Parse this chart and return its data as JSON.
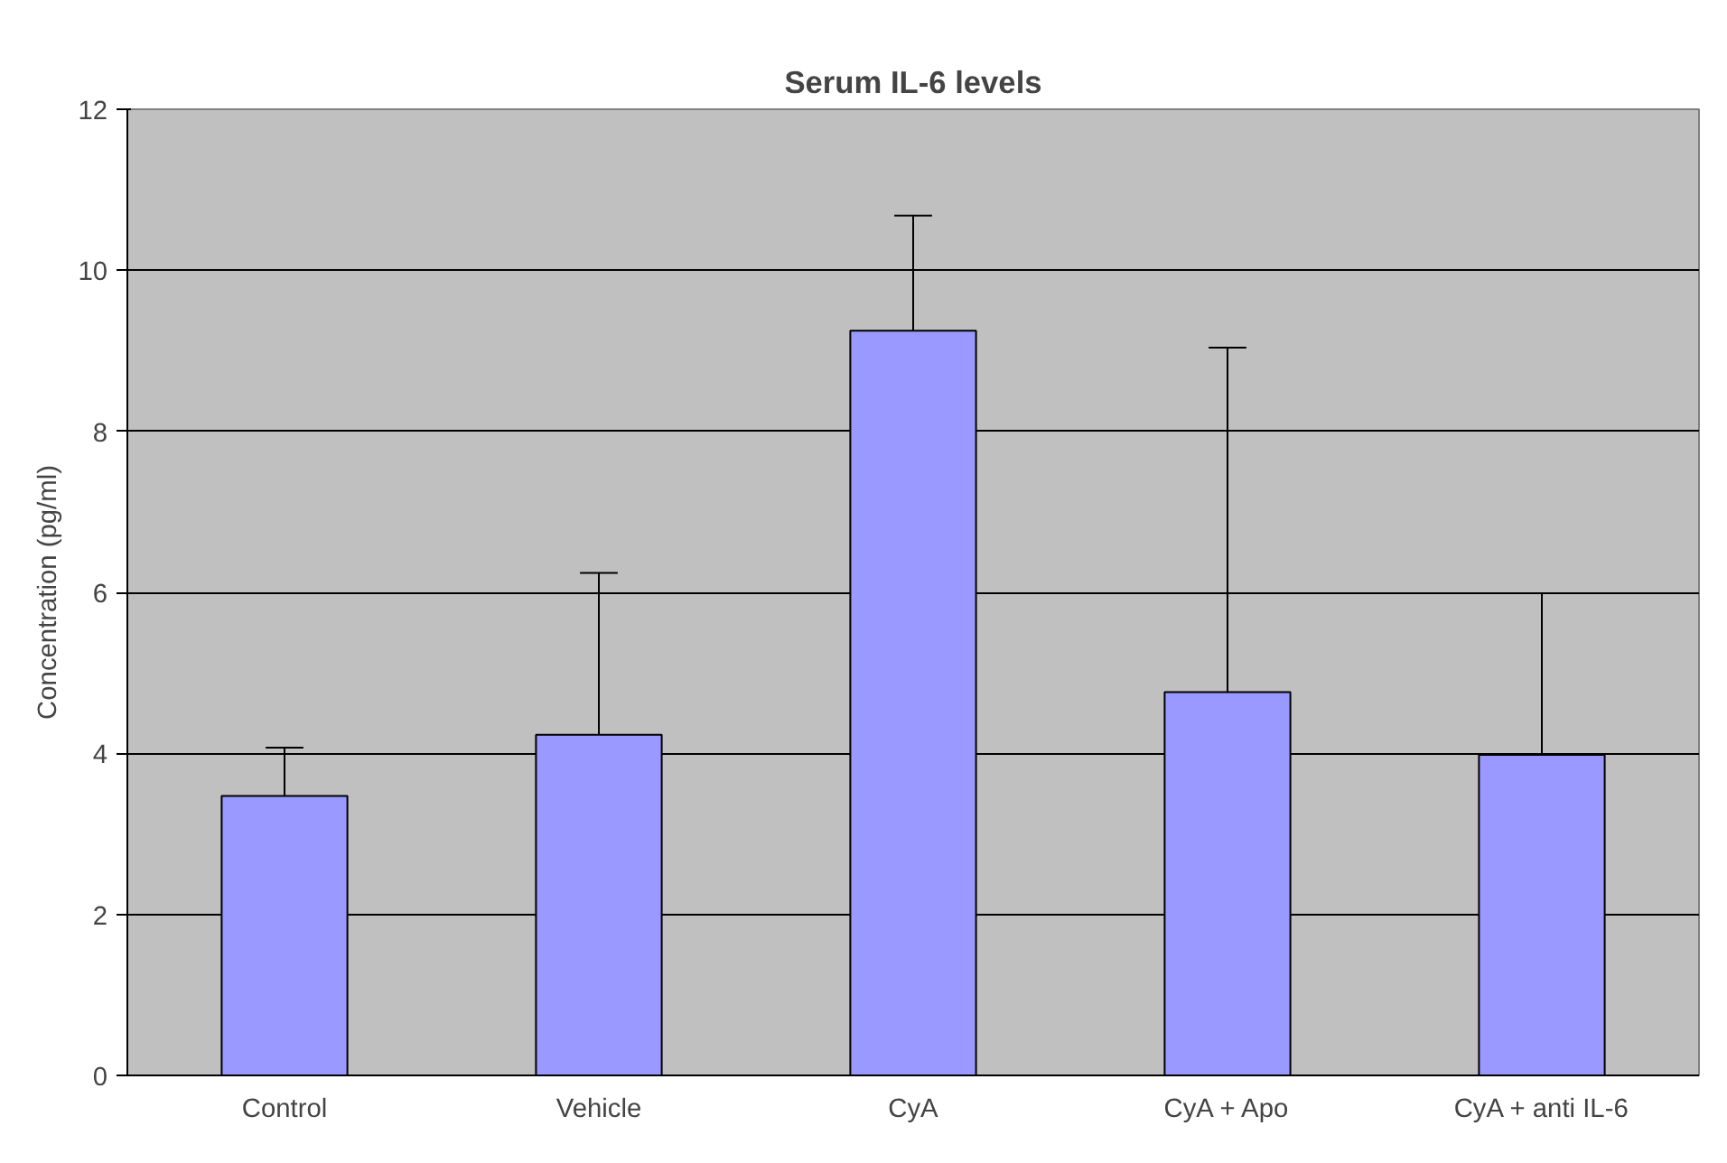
{
  "chart_data": {
    "type": "bar",
    "title": "Serum IL-6 levels",
    "ylabel": "Concentration (pg/ml)",
    "categories": [
      "Control",
      "Vehicle",
      "CyA",
      "CyA + Apo",
      "CyA + anti IL-6"
    ],
    "values": [
      3.47,
      4.23,
      9.25,
      4.76,
      3.98
    ],
    "errors": [
      [
        3.47,
        4.07
      ],
      [
        4.23,
        6.24
      ],
      [
        9.25,
        10.68
      ],
      [
        4.76,
        9.04
      ],
      [
        3.98,
        5.99
      ]
    ],
    "color": "#9999ff",
    "ylim": [
      0,
      12
    ],
    "yticks": [
      0,
      2,
      4,
      6,
      8,
      10,
      12
    ],
    "grid": "y"
  }
}
